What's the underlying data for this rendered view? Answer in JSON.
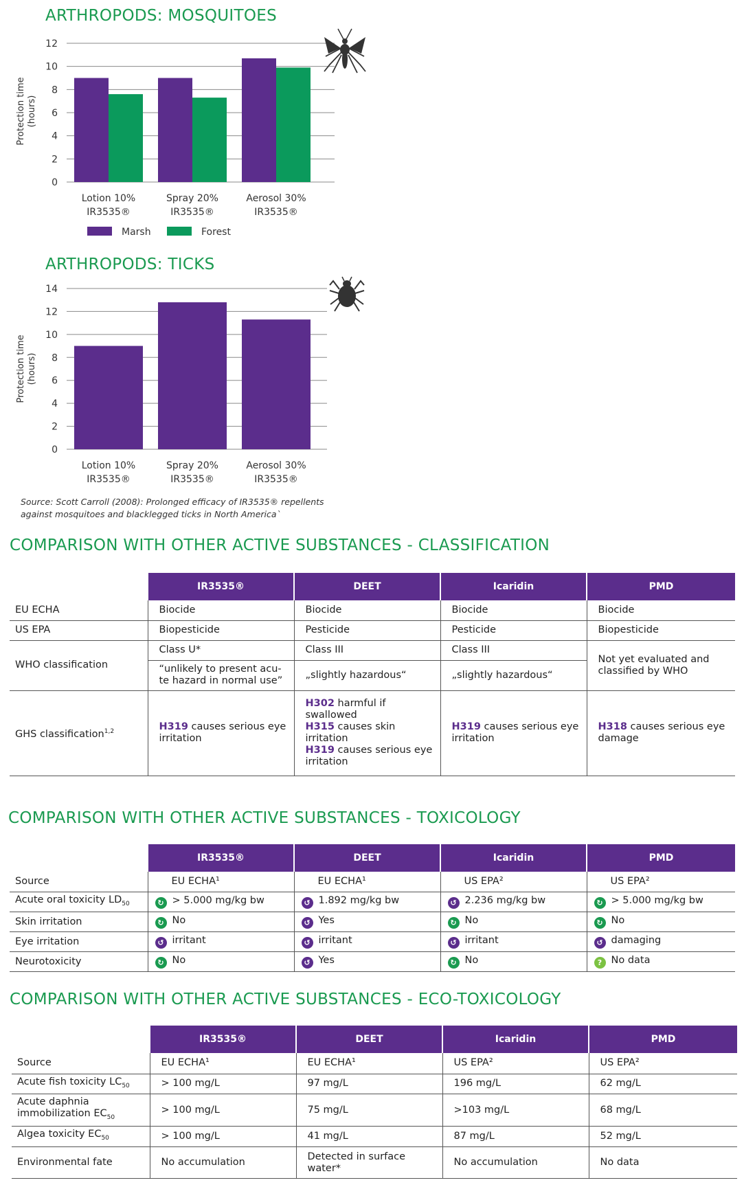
{
  "titles": {
    "mosquitoes": "ARTHROPODS: MOSQUITOES",
    "ticks": "ARTHROPODS: TICKS",
    "classification": "COMPARISON WITH OTHER ACTIVE SUBSTANCES - CLASSIFICATION",
    "toxicology": "COMPARISON WITH OTHER ACTIVE SUBSTANCES - TOXICOLOGY",
    "ecotox": "COMPARISON WITH OTHER ACTIVE SUBSTANCES - ECO-TOXICOLOGY"
  },
  "chart_data": [
    {
      "type": "bar",
      "title": "ARTHROPODS: MOSQUITOES",
      "ylabel": "Protection time (hours)",
      "ylim": [
        0,
        12
      ],
      "yticks": [
        0,
        2,
        4,
        6,
        8,
        10,
        12
      ],
      "categories": [
        [
          "Lotion 10%",
          "IR3535®"
        ],
        [
          "Spray 20%",
          "IR3535®"
        ],
        [
          "Aerosol 30%",
          "IR3535®"
        ]
      ],
      "series": [
        {
          "name": "Marsh",
          "color": "#5b2d8c",
          "values": [
            9.0,
            9.0,
            10.7
          ]
        },
        {
          "name": "Forest",
          "color": "#0b9a5c",
          "values": [
            7.6,
            7.3,
            9.9
          ]
        }
      ],
      "legend": "bottom",
      "icon": "mosquito-icon"
    },
    {
      "type": "bar",
      "title": "ARTHROPODS: TICKS",
      "ylabel": "Protection time (hours)",
      "ylim": [
        0,
        14
      ],
      "yticks": [
        0,
        2,
        4,
        6,
        8,
        10,
        12,
        14
      ],
      "categories": [
        [
          "Lotion 10%",
          "IR3535®"
        ],
        [
          "Spray 20%",
          "IR3535®"
        ],
        [
          "Aerosol 30%",
          "IR3535®"
        ]
      ],
      "series": [
        {
          "color": "#5b2d8c",
          "values": [
            9.0,
            12.8,
            11.3
          ]
        }
      ],
      "icon": "tick-icon"
    }
  ],
  "source": {
    "line1": "Source: Scott Carroll (2008): Prolonged efficacy of IR3535® repellents",
    "line2": "against mosquitoes and blacklegged ticks in North America`"
  },
  "headers": [
    "IR3535®",
    "DEET",
    "Icaridin",
    "PMD"
  ],
  "classification": {
    "eu_echa": {
      "label": "EU ECHA",
      "values": [
        "Biocide",
        "Biocide",
        "Biocide",
        "Biocide"
      ]
    },
    "us_epa": {
      "label": "US EPA",
      "values": [
        "Biopesticide",
        "Pesticide",
        "Pesticide",
        "Biopesticide"
      ]
    },
    "who": {
      "label": "WHO classification",
      "class": [
        "Class U*",
        "Class III",
        "Class III"
      ],
      "desc": [
        "“unlikely to present acu-te hazard in normal use”",
        "„slightly hazardous“",
        "„slightly hazardous“"
      ],
      "pmd": "Not yet evaluated and classified by WHO"
    },
    "ghs": {
      "label": "GHS classification",
      "sup": "1,2",
      "ir3535": {
        "code": "H319",
        "text": "causes serious eye irritation"
      },
      "deet": [
        {
          "code": "H302",
          "text": "harmful if swallowed"
        },
        {
          "code": "H315",
          "text": "causes skin irritation"
        },
        {
          "code": "H319",
          "text": "causes serious eye irritation"
        }
      ],
      "icaridin": {
        "code": "H319",
        "text": "causes serious eye irritation"
      },
      "pmd": {
        "code": "H318",
        "text": "causes serious eye damage"
      }
    }
  },
  "toxicology": {
    "source": {
      "label": "Source",
      "values": [
        "EU ECHA¹",
        "EU ECHA¹",
        "US EPA²",
        "US EPA²"
      ]
    },
    "rows": [
      {
        "label": "Acute oral toxicity LD",
        "sub": "50",
        "values": [
          "> 5.000 mg/kg bw",
          "1.892 mg/kg bw",
          "2.236 mg/kg bw",
          "> 5.000 mg/kg bw"
        ],
        "status": [
          "good",
          "bad",
          "bad",
          "good"
        ]
      },
      {
        "label": "Skin irritation",
        "values": [
          "No",
          "Yes",
          "No",
          "No"
        ],
        "status": [
          "good",
          "bad",
          "good",
          "good"
        ]
      },
      {
        "label": "Eye irritation",
        "values": [
          "irritant",
          "irritant",
          "irritant",
          "damaging"
        ],
        "status": [
          "bad",
          "bad",
          "bad",
          "bad"
        ]
      },
      {
        "label": "Neurotoxicity",
        "values": [
          "No",
          "Yes",
          "No",
          "No data"
        ],
        "status": [
          "good",
          "bad",
          "good",
          "nodata"
        ]
      }
    ]
  },
  "ecotox": {
    "source": {
      "label": "Source",
      "values": [
        "EU ECHA¹",
        "EU ECHA¹",
        "US EPA²",
        "US EPA²"
      ]
    },
    "rows": [
      {
        "label": "Acute fish toxicity LC",
        "sub": "50",
        "values": [
          "> 100 mg/L",
          "97 mg/L",
          "196 mg/L",
          "62 mg/L"
        ]
      },
      {
        "label": "Acute daphnia immobilization EC",
        "sub": "50",
        "values": [
          "> 100 mg/L",
          "75 mg/L",
          ">103 mg/L",
          "68 mg/L"
        ]
      },
      {
        "label": "Algea toxicity EC",
        "sub": "50",
        "values": [
          "> 100 mg/L",
          "41 mg/L",
          "87 mg/L",
          "52 mg/L"
        ]
      },
      {
        "label": "Environmental fate",
        "values": [
          "No accumulation",
          "Detected in surface water*",
          "No accumulation",
          "No data"
        ]
      }
    ]
  }
}
